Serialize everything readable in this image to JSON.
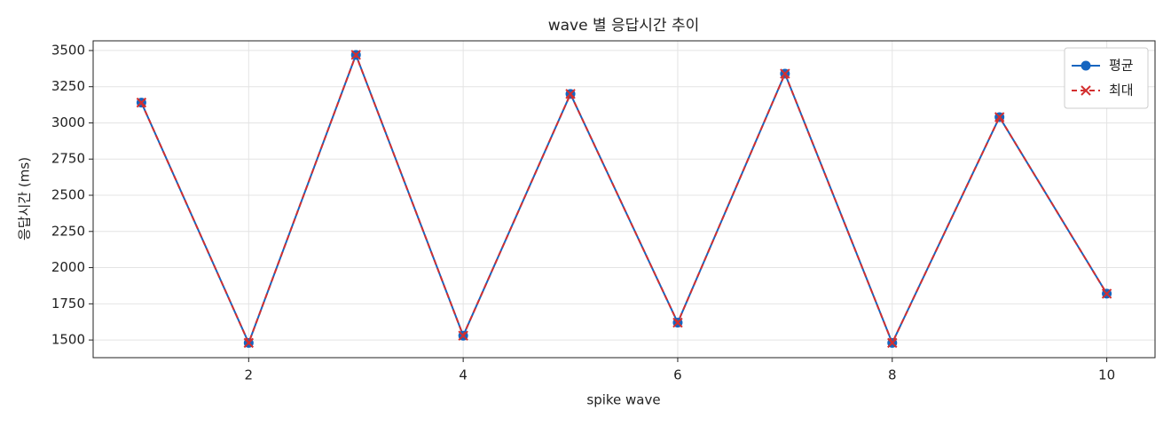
{
  "chart_data": {
    "type": "line",
    "title": "wave 별 응답시간 추이",
    "x_label": "spike wave",
    "y_label": "응답시간 (ms)",
    "x": [
      1,
      2,
      3,
      4,
      5,
      6,
      7,
      8,
      9,
      10
    ],
    "series": [
      {
        "name": "평균",
        "color": "#1565c0",
        "marker": "circle",
        "dash": false,
        "values": [
          3140,
          1480,
          3470,
          1530,
          3200,
          1620,
          3340,
          1480,
          3040,
          1820
        ]
      },
      {
        "name": "최대",
        "color": "#d32f2f",
        "marker": "x",
        "dash": true,
        "values": [
          3140,
          1480,
          3470,
          1530,
          3200,
          1620,
          3340,
          1480,
          3040,
          1820
        ]
      }
    ],
    "xlim": [
      0.55,
      10.45
    ],
    "xticks": [
      2,
      4,
      6,
      8,
      10
    ],
    "ylim": [
      1378,
      3567
    ],
    "yticks": [
      1500,
      1750,
      2000,
      2250,
      2500,
      2750,
      3000,
      3250,
      3500
    ],
    "grid": true,
    "legend": "upper right"
  }
}
